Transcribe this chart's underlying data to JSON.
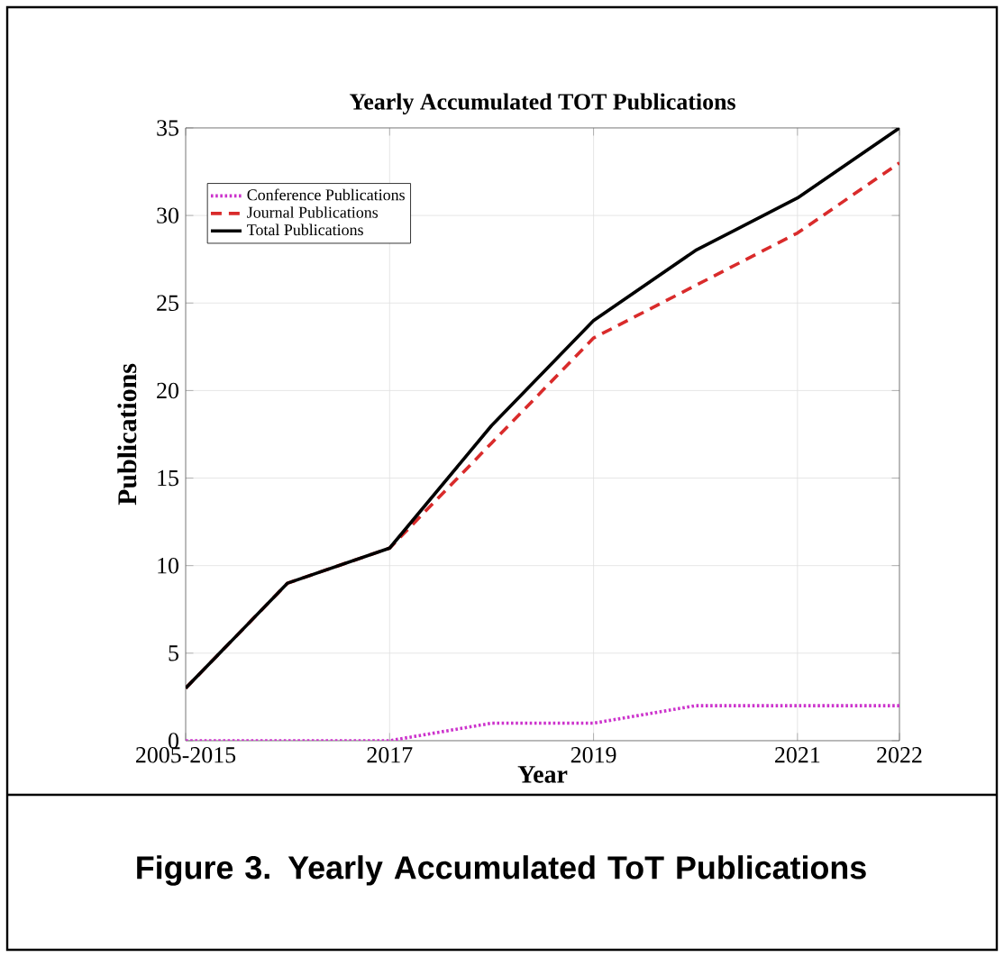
{
  "chart_data": {
    "type": "line",
    "title": "Yearly Accumulated  TOT Publications",
    "xlabel": "Year",
    "ylabel": "Publications",
    "categories": [
      "2005-2015",
      null,
      "2017",
      null,
      "2019",
      null,
      "2021",
      "2022"
    ],
    "series": [
      {
        "name": "Conference Publications",
        "color": "#cc33cc",
        "line_style": "dotted",
        "values": [
          0,
          0,
          0,
          1,
          1,
          2,
          2,
          2
        ]
      },
      {
        "name": "Journal Publications",
        "color": "#d92b2b",
        "line_style": "dashed",
        "values": [
          3,
          9,
          11,
          17,
          23,
          26,
          29,
          33
        ]
      },
      {
        "name": "Total Publications",
        "color": "#000000",
        "line_style": "solid",
        "values": [
          3,
          9,
          11,
          18,
          24,
          28,
          31,
          35
        ]
      }
    ],
    "ylim": [
      0,
      35
    ],
    "yticks": [
      0,
      5,
      10,
      15,
      20,
      25,
      30,
      35
    ],
    "grid": true,
    "legend": "top left",
    "marker": "none",
    "annotations": [
      "**Figure 3. Yearly Accumulated ToT Publications**"
    ]
  }
}
